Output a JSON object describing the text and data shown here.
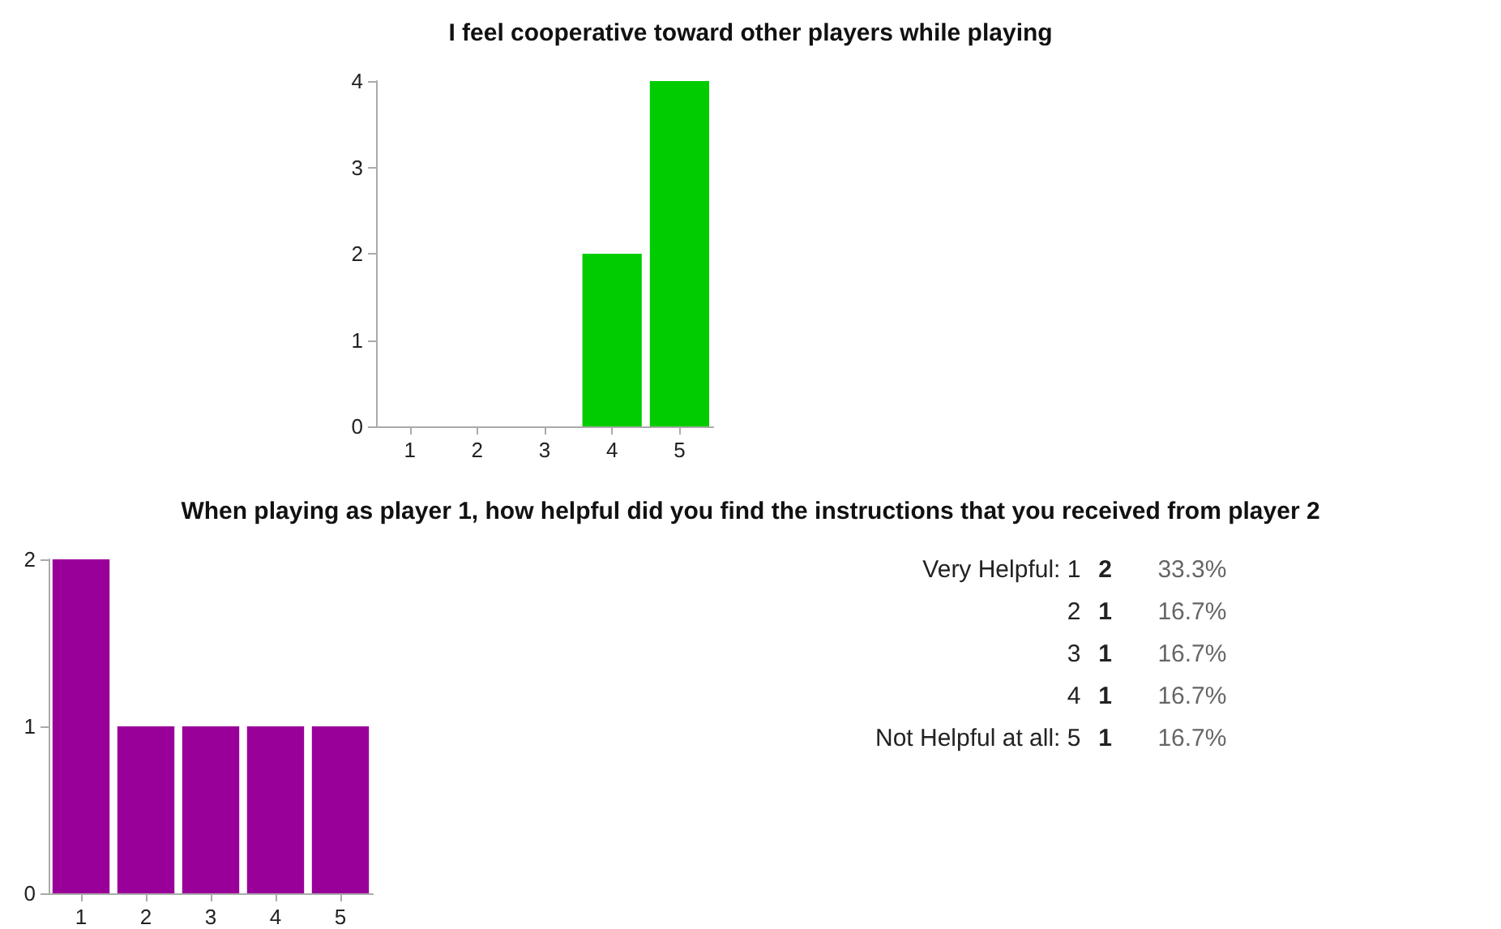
{
  "chart_data": [
    {
      "type": "bar",
      "title": "I feel cooperative toward other players while playing",
      "categories": [
        "1",
        "2",
        "3",
        "4",
        "5"
      ],
      "values": [
        0,
        0,
        0,
        2,
        4
      ],
      "color": "#00cc00",
      "ylim": [
        0,
        4
      ],
      "yticks": [
        0,
        1,
        2,
        3,
        4
      ]
    },
    {
      "type": "bar",
      "title": "When playing as player 1, how helpful did you find the instructions that you received from player 2",
      "categories": [
        "1",
        "2",
        "3",
        "4",
        "5"
      ],
      "values": [
        2,
        1,
        1,
        1,
        1
      ],
      "color": "#990099",
      "ylim": [
        0,
        2
      ],
      "yticks": [
        0,
        1,
        2
      ],
      "annotations": [
        "Very Helpful: 1",
        "2",
        "33.3%",
        "2",
        "1",
        "16.7%",
        "3",
        "1",
        "16.7%",
        "4",
        "1",
        "16.7%",
        "Not Helpful at all: 5",
        "1",
        "16.7%"
      ]
    }
  ]
}
